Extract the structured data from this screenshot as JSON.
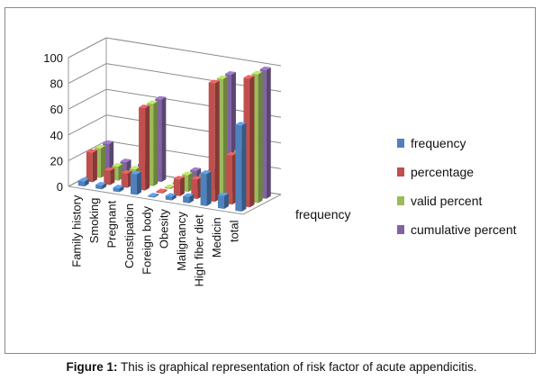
{
  "chart_data": {
    "type": "bar",
    "subtype": "3d-clustered-column",
    "categories": [
      "Family history",
      "Smoking",
      "Pregnant",
      "Constipation",
      "Foreign body",
      "Obesity",
      "Malignancy",
      "High fiber diet",
      "Medicin",
      "total"
    ],
    "series": [
      {
        "name": "frequency",
        "color": "#4f81bd",
        "values": [
          4,
          3,
          3,
          16,
          1,
          3,
          5,
          25,
          10,
          67
        ]
      },
      {
        "name": "percentage",
        "color": "#c0504d",
        "values": [
          23,
          11,
          11,
          64,
          1,
          13,
          15,
          92,
          38,
          100
        ]
      },
      {
        "name": "valid percent",
        "color": "#9bbb59",
        "values": [
          23,
          11,
          11,
          64,
          1,
          13,
          15,
          92,
          38,
          100
        ]
      },
      {
        "name": "cumulative percent",
        "color": "#8064a2",
        "values": [
          23,
          11,
          11,
          64,
          1,
          13,
          15,
          92,
          38,
          100
        ]
      }
    ],
    "y_ticks": [
      "0",
      "20",
      "40",
      "60",
      "80",
      "100"
    ],
    "ylim": [
      0,
      100
    ],
    "depth_axis_label": "frequency",
    "grid": true,
    "legend_position": "right"
  },
  "caption": {
    "label": "Figure 1:",
    "text": " This is graphical representation of risk factor of acute appendicitis."
  }
}
